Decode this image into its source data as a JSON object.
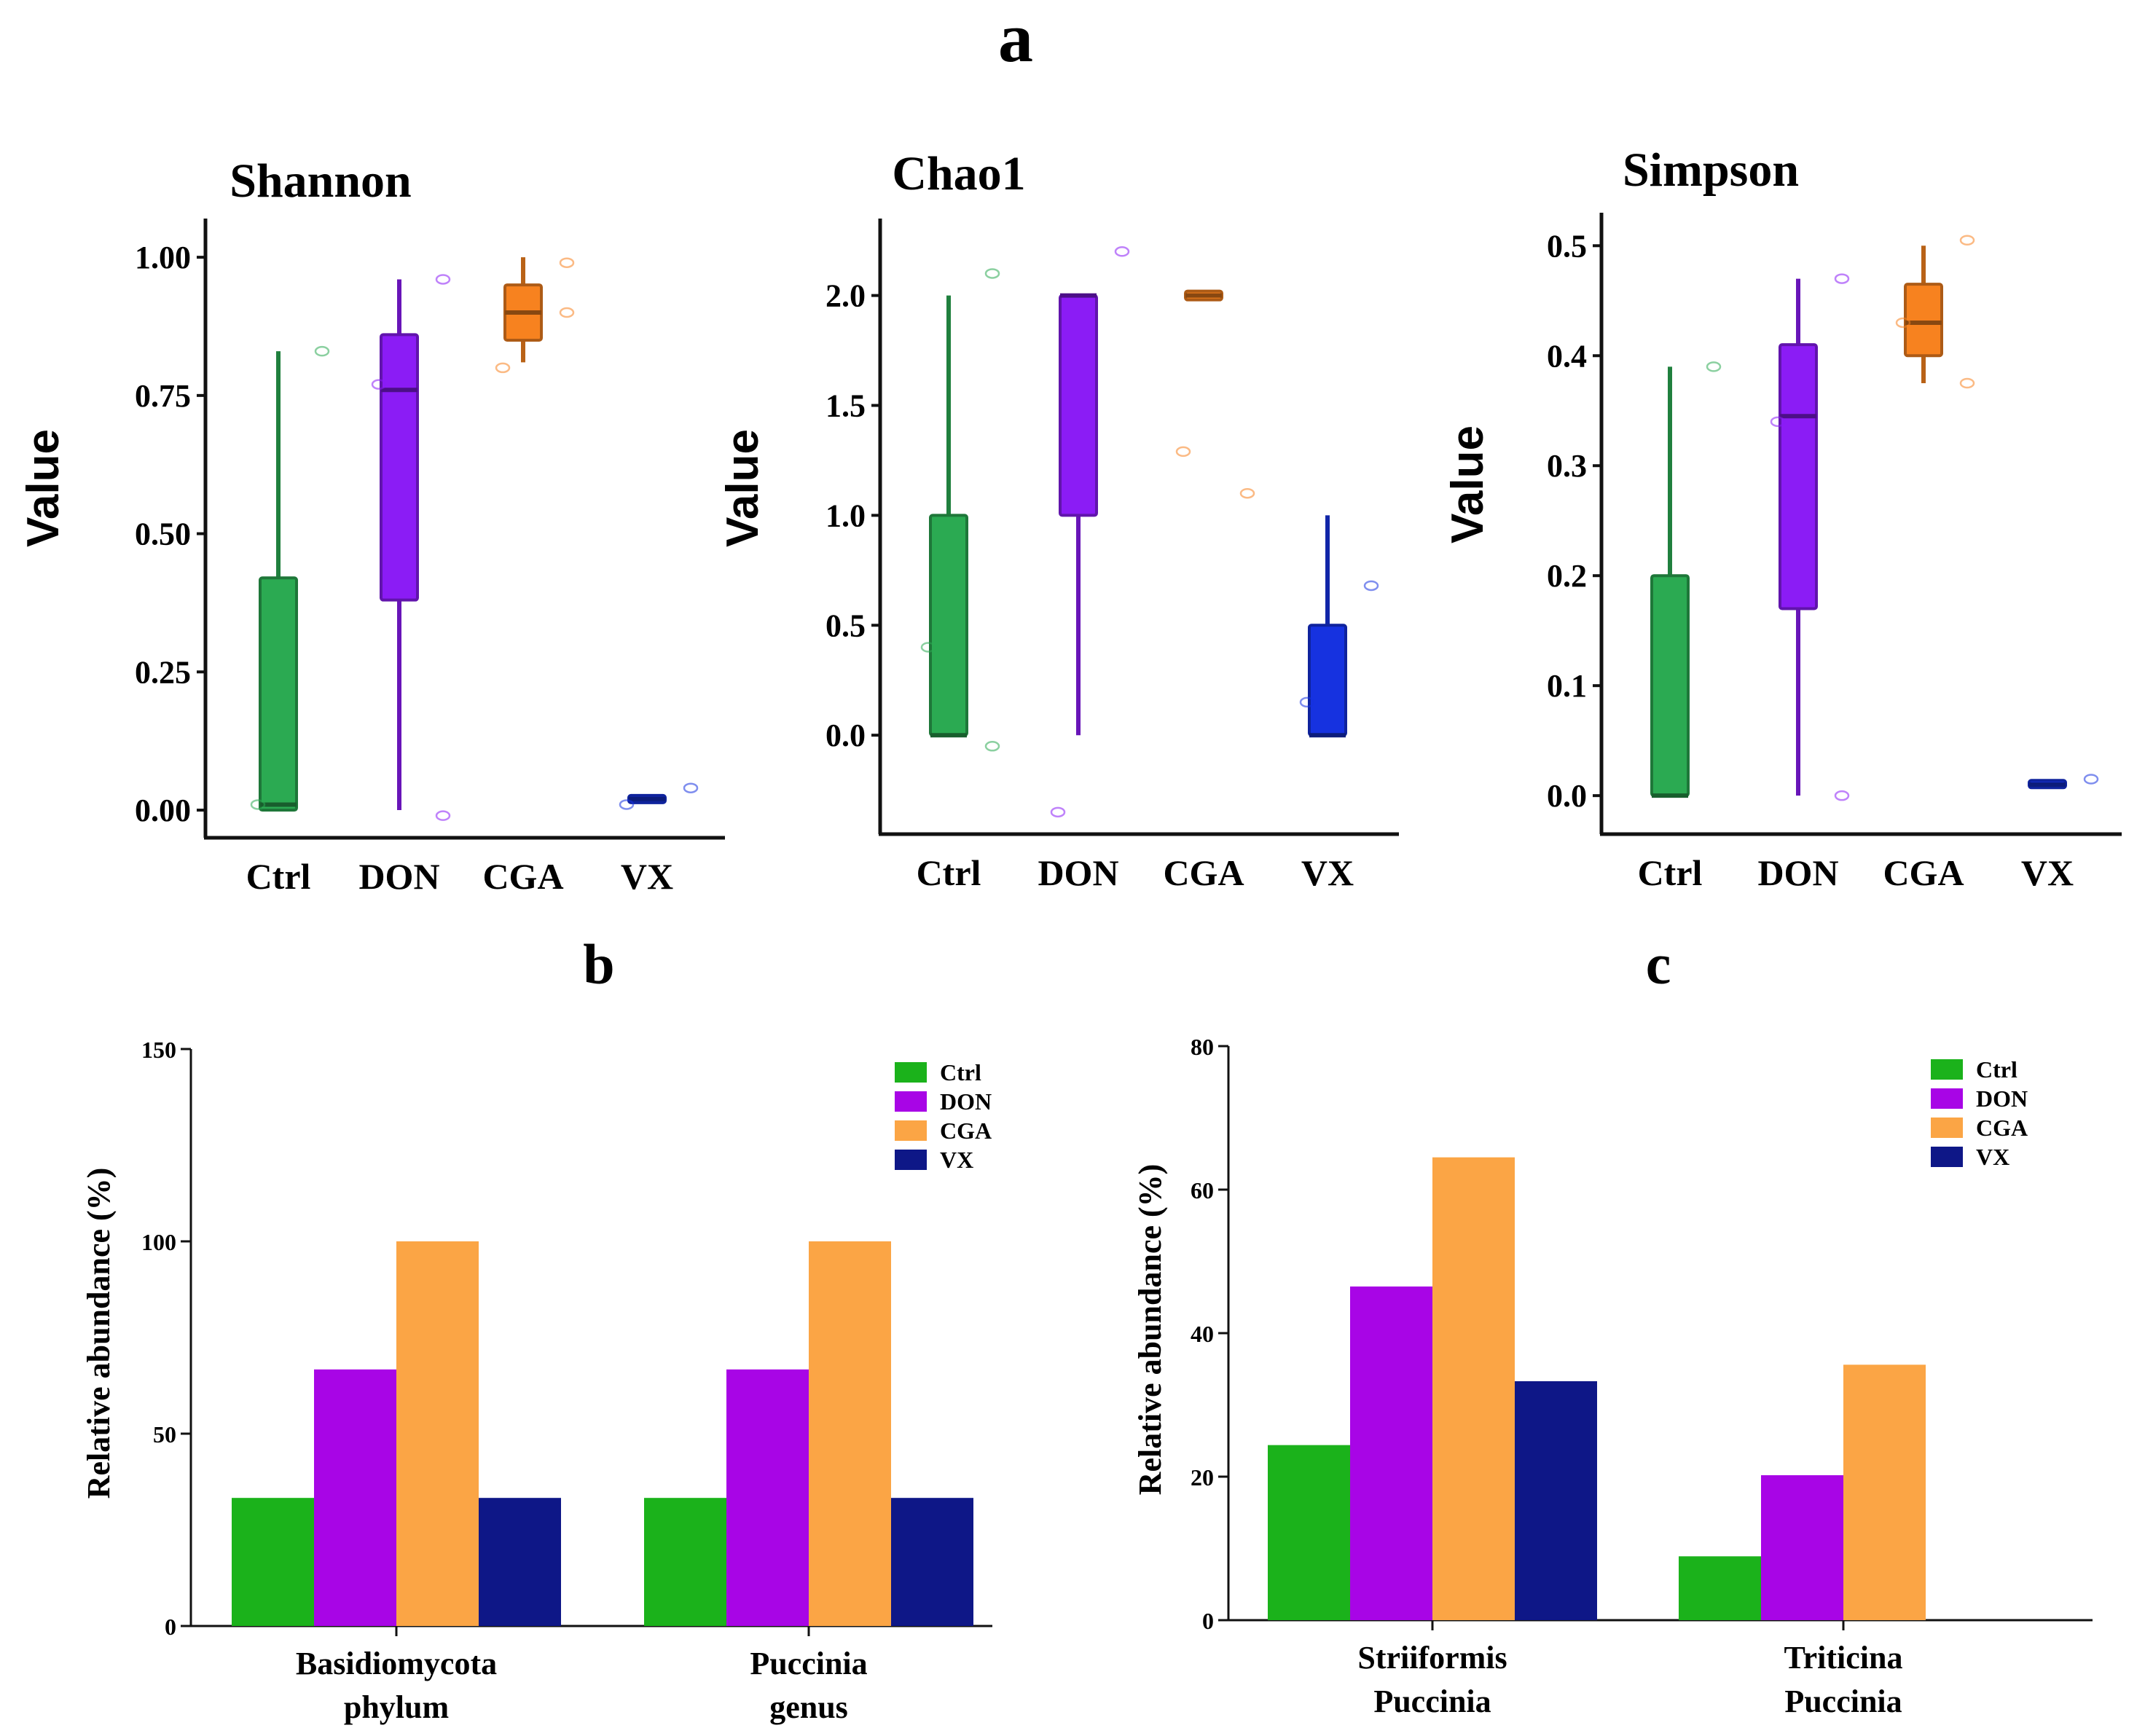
{
  "panel_labels": {
    "a": "a",
    "b": "b",
    "c": "c"
  },
  "colors": {
    "Ctrl": "#2BAA52",
    "DON": "#8B1CF5",
    "CGA": "#F7821F",
    "VX": "#1632E0",
    "bar_Ctrl": "#1BB21B",
    "bar_DON": "#A805E6",
    "bar_CGA": "#FBA545",
    "bar_VX": "#0E1787"
  },
  "chart_data": [
    {
      "type": "box",
      "title": "Shannon",
      "ylabel": "Value",
      "ylim": [
        -0.05,
        1.07
      ],
      "yticks": [
        0.0,
        0.25,
        0.5,
        0.75,
        1.0
      ],
      "ytick_labels": [
        "0.00",
        "0.25",
        "0.50",
        "0.75",
        "1.00"
      ],
      "categories": [
        "Ctrl",
        "DON",
        "CGA",
        "VX"
      ],
      "boxes": [
        {
          "group": "Ctrl",
          "min": 0.0,
          "q1": 0.0,
          "median": 0.01,
          "q3": 0.42,
          "max": 0.83,
          "points": [
            0.83,
            0.01
          ]
        },
        {
          "group": "DON",
          "min": 0.0,
          "q1": 0.38,
          "median": 0.76,
          "q3": 0.86,
          "max": 0.96,
          "points": [
            0.96,
            0.77,
            -0.01
          ]
        },
        {
          "group": "CGA",
          "min": 0.81,
          "q1": 0.85,
          "median": 0.9,
          "q3": 0.95,
          "max": 1.0,
          "points": [
            0.99,
            0.8,
            0.9
          ]
        },
        {
          "group": "VX",
          "min": 0.015,
          "q1": 0.015,
          "median": 0.02,
          "q3": 0.025,
          "max": 0.025,
          "points": [
            0.04,
            0.01
          ]
        }
      ]
    },
    {
      "type": "box",
      "title": "Chao1",
      "ylabel": "Value",
      "ylim": [
        -0.45,
        2.35
      ],
      "yticks": [
        0.0,
        0.5,
        1.0,
        1.5,
        2.0
      ],
      "ytick_labels": [
        "0.0",
        "0.5",
        "1.0",
        "1.5",
        "2.0"
      ],
      "categories": [
        "Ctrl",
        "DON",
        "CGA",
        "VX"
      ],
      "boxes": [
        {
          "group": "Ctrl",
          "min": 0.0,
          "q1": 0.0,
          "median": 0.0,
          "q3": 1.0,
          "max": 2.0,
          "points": [
            2.1,
            0.4,
            -0.05
          ]
        },
        {
          "group": "DON",
          "min": 0.0,
          "q1": 1.0,
          "median": 2.0,
          "q3": 2.0,
          "max": 2.0,
          "points": [
            2.2,
            -0.35
          ]
        },
        {
          "group": "CGA",
          "min": 1.98,
          "q1": 1.98,
          "median": 2.0,
          "q3": 2.02,
          "max": 2.02,
          "points": [
            1.1,
            1.29
          ]
        },
        {
          "group": "VX",
          "min": 0.0,
          "q1": 0.0,
          "median": 0.0,
          "q3": 0.5,
          "max": 1.0,
          "points": [
            0.68,
            0.15
          ]
        }
      ]
    },
    {
      "type": "box",
      "title": "Simpson",
      "ylabel": "Value",
      "ylim": [
        -0.035,
        0.53
      ],
      "yticks": [
        0.0,
        0.1,
        0.2,
        0.3,
        0.4,
        0.5
      ],
      "ytick_labels": [
        "0.0",
        "0.1",
        "0.2",
        "0.3",
        "0.4",
        "0.5"
      ],
      "categories": [
        "Ctrl",
        "DON",
        "CGA",
        "VX"
      ],
      "boxes": [
        {
          "group": "Ctrl",
          "min": 0.0,
          "q1": 0.0,
          "median": 0.0,
          "q3": 0.2,
          "max": 0.39,
          "points": [
            0.39
          ]
        },
        {
          "group": "DON",
          "min": 0.0,
          "q1": 0.17,
          "median": 0.345,
          "q3": 0.41,
          "max": 0.47,
          "points": [
            0.47,
            0.34,
            0.0
          ]
        },
        {
          "group": "CGA",
          "min": 0.375,
          "q1": 0.4,
          "median": 0.43,
          "q3": 0.465,
          "max": 0.5,
          "points": [
            0.505,
            0.43,
            0.375
          ]
        },
        {
          "group": "VX",
          "min": 0.008,
          "q1": 0.008,
          "median": 0.01,
          "q3": 0.013,
          "max": 0.013,
          "points": [
            0.015
          ]
        }
      ]
    },
    {
      "type": "bar",
      "panel": "b",
      "ylabel": "Relative abundance (%)",
      "ylim": [
        0,
        150
      ],
      "yticks": [
        0,
        50,
        100,
        150
      ],
      "categories": [
        [
          "Basidiomycota",
          "phylum"
        ],
        [
          "Puccinia",
          "genus"
        ]
      ],
      "series": [
        {
          "name": "Ctrl",
          "values": [
            33.3,
            33.3
          ]
        },
        {
          "name": "DON",
          "values": [
            66.7,
            66.7
          ]
        },
        {
          "name": "CGA",
          "values": [
            100,
            100
          ]
        },
        {
          "name": "VX",
          "values": [
            33.3,
            33.3
          ]
        }
      ],
      "legend": "top-right"
    },
    {
      "type": "bar",
      "panel": "c",
      "ylabel": "Relative abundance (%)",
      "ylim": [
        0,
        80
      ],
      "yticks": [
        0,
        20,
        40,
        60,
        80
      ],
      "categories": [
        [
          "Striiformis",
          "Puccinia"
        ],
        [
          "Triticina",
          "Puccinia"
        ]
      ],
      "series": [
        {
          "name": "Ctrl",
          "values": [
            24.4,
            8.9
          ]
        },
        {
          "name": "DON",
          "values": [
            46.5,
            20.2
          ]
        },
        {
          "name": "CGA",
          "values": [
            64.5,
            35.6
          ]
        },
        {
          "name": "VX",
          "values": [
            33.3,
            0
          ]
        }
      ],
      "legend": "top-right"
    }
  ]
}
